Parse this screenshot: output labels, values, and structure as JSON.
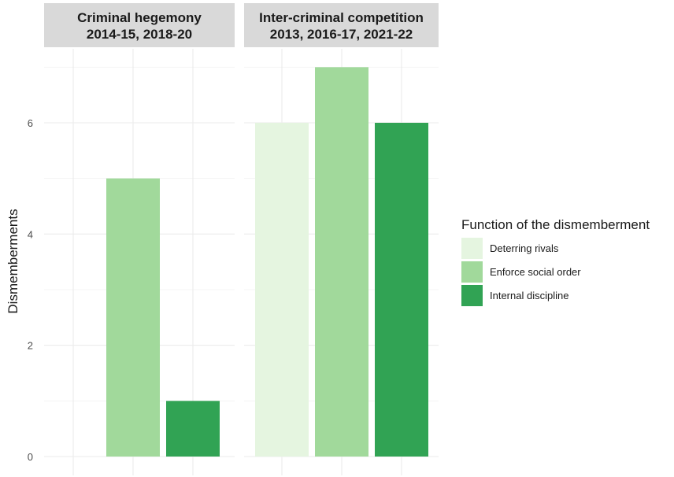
{
  "chart_data": {
    "type": "bar",
    "ylabel": "Dismemberments",
    "xlabel": "",
    "ylim": [
      0,
      7.35
    ],
    "yticks": [
      0,
      2,
      4,
      6
    ],
    "grid": true,
    "legend": {
      "title": "Function of the dismemberment",
      "position": "right",
      "entries": [
        "Deterring rivals",
        "Enforce social order",
        "Internal discipline"
      ]
    },
    "colors": {
      "Deterring rivals": "#e5f5e0",
      "Enforce social order": "#a1d99b",
      "Internal discipline": "#31a354"
    },
    "facets": [
      {
        "title_lines": [
          "Criminal hegemony",
          "2014-15, 2018-20"
        ],
        "categories": [
          "Deterring rivals",
          "Enforce social order",
          "Internal discipline"
        ],
        "values": [
          0,
          5,
          1
        ]
      },
      {
        "title_lines": [
          "Inter-criminal competition",
          "2013, 2016-17, 2021-22"
        ],
        "categories": [
          "Deterring rivals",
          "Enforce social order",
          "Internal discipline"
        ],
        "values": [
          6,
          7,
          6
        ]
      }
    ]
  }
}
